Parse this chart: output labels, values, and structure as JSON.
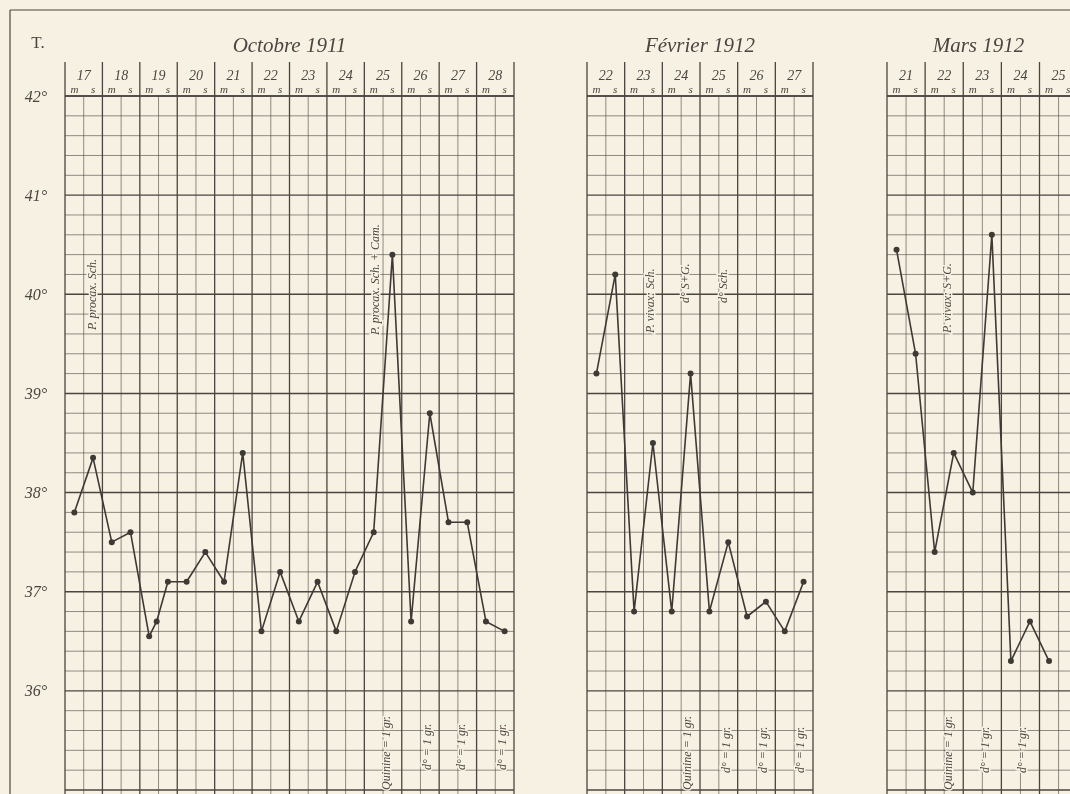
{
  "chart_data": [
    {
      "type": "line",
      "title": "Octobre 1911",
      "ylabel": "T.",
      "marker": "circle",
      "grid": true,
      "xlim": [
        17,
        29
      ],
      "ylim": [
        35,
        42
      ],
      "xticks": [
        {
          "value": 17,
          "label": null
        },
        {
          "value": 17.5,
          "label": "17"
        },
        {
          "value": 18,
          "label": null
        },
        {
          "value": 18.5,
          "label": "18"
        },
        {
          "value": 19,
          "label": null
        },
        {
          "value": 19.5,
          "label": "19"
        },
        {
          "value": 20,
          "label": null
        },
        {
          "value": 20.5,
          "label": "20"
        },
        {
          "value": 21,
          "label": null
        },
        {
          "value": 21.5,
          "label": "21"
        },
        {
          "value": 22,
          "label": null
        },
        {
          "value": 22.5,
          "label": "22"
        },
        {
          "value": 23,
          "label": null
        },
        {
          "value": 23.5,
          "label": "23"
        },
        {
          "value": 24,
          "label": null
        },
        {
          "value": 24.5,
          "label": "24"
        },
        {
          "value": 25,
          "label": null
        },
        {
          "value": 25.5,
          "label": "25"
        },
        {
          "value": 26,
          "label": null
        },
        {
          "value": 26.5,
          "label": "26"
        },
        {
          "value": 27,
          "label": null
        },
        {
          "value": 27.5,
          "label": "27"
        },
        {
          "value": 28,
          "label": null
        },
        {
          "value": 28.5,
          "label": "28"
        },
        {
          "value": 29,
          "label": null
        }
      ],
      "yticks": [
        {
          "value": 35,
          "label": null
        },
        {
          "value": 35.2,
          "label": null
        },
        {
          "value": 35.4,
          "label": null
        },
        {
          "value": 35.6,
          "label": null
        },
        {
          "value": 35.8,
          "label": null
        },
        {
          "value": 36,
          "label": "36°"
        },
        {
          "value": 36.2,
          "label": null
        },
        {
          "value": 36.4,
          "label": null
        },
        {
          "value": 36.6,
          "label": null
        },
        {
          "value": 36.8,
          "label": null
        },
        {
          "value": 37,
          "label": "37°"
        },
        {
          "value": 37.2,
          "label": null
        },
        {
          "value": 37.4,
          "label": null
        },
        {
          "value": 37.6,
          "label": null
        },
        {
          "value": 37.8,
          "label": null
        },
        {
          "value": 38,
          "label": "38°"
        },
        {
          "value": 38.2,
          "label": null
        },
        {
          "value": 38.4,
          "label": null
        },
        {
          "value": 38.6,
          "label": null
        },
        {
          "value": 38.8,
          "label": null
        },
        {
          "value": 39,
          "label": "39°"
        },
        {
          "value": 39.2,
          "label": null
        },
        {
          "value": 39.4,
          "label": null
        },
        {
          "value": 39.6,
          "label": null
        },
        {
          "value": 39.8,
          "label": null
        },
        {
          "value": 40,
          "label": "40°"
        },
        {
          "value": 40.2,
          "label": null
        },
        {
          "value": 40.4,
          "label": null
        },
        {
          "value": 40.6,
          "label": null
        },
        {
          "value": 40.8,
          "label": null
        },
        {
          "value": 41,
          "label": "41°"
        },
        {
          "value": 41.2,
          "label": null
        },
        {
          "value": 41.4,
          "label": null
        },
        {
          "value": 41.6,
          "label": null
        },
        {
          "value": 41.8,
          "label": null
        },
        {
          "value": 42,
          "label": "42°"
        }
      ],
      "x": [
        17.25,
        17.75,
        18.25,
        18.75,
        19.25,
        19.45,
        19.75,
        20.25,
        20.75,
        21.25,
        21.75,
        22.25,
        22.75,
        23.25,
        23.75,
        24.25,
        24.75,
        25.25,
        25.75,
        26.25,
        26.75,
        27.25,
        27.75,
        28.25,
        28.75
      ],
      "series": [
        {
          "color": "#3d3a35",
          "values": [
            37.8,
            38.35,
            37.5,
            37.6,
            36.55,
            36.7,
            37.1,
            37.1,
            37.4,
            37.1,
            38.4,
            36.6,
            37.2,
            36.7,
            37.1,
            36.6,
            37.2,
            37.6,
            40.4,
            36.7,
            38.8,
            37.7,
            37.7,
            36.7,
            36.6
          ]
        }
      ],
      "annotations": [
        "P. procax. Sch.",
        "P. procax. Sch. + Cam.",
        "Quinine = 1 gr.",
        "d° = 1 gr.",
        "d° = 1 gr.",
        "d° = 1 gr.",
        "m",
        "s",
        "m",
        "s",
        "m",
        "s",
        "m",
        "s",
        "m",
        "s",
        "m",
        "s",
        "m",
        "s",
        "m",
        "s",
        "m",
        "s",
        "m",
        "s",
        "m",
        "s",
        "m",
        "s"
      ]
    },
    {
      "type": "line",
      "title": "Février 1912",
      "marker": "circle",
      "grid": true,
      "tick_labels": "x",
      "xlim": [
        22,
        28
      ],
      "ylim": [
        35,
        42
      ],
      "xticks": [
        {
          "value": 22,
          "label": null
        },
        {
          "value": 22.5,
          "label": "22"
        },
        {
          "value": 23,
          "label": null
        },
        {
          "value": 23.5,
          "label": "23"
        },
        {
          "value": 24,
          "label": null
        },
        {
          "value": 24.5,
          "label": "24"
        },
        {
          "value": 25,
          "label": null
        },
        {
          "value": 25.5,
          "label": "25"
        },
        {
          "value": 26,
          "label": null
        },
        {
          "value": 26.5,
          "label": "26"
        },
        {
          "value": 27,
          "label": null
        },
        {
          "value": 27.5,
          "label": "27"
        },
        {
          "value": 28,
          "label": null
        }
      ],
      "yticks": [
        {
          "value": 35,
          "label": null
        },
        {
          "value": 35.2,
          "label": null
        },
        {
          "value": 35.4,
          "label": null
        },
        {
          "value": 35.6,
          "label": null
        },
        {
          "value": 35.8,
          "label": null
        },
        {
          "value": 36,
          "label": null
        },
        {
          "value": 36.2,
          "label": null
        },
        {
          "value": 36.4,
          "label": null
        },
        {
          "value": 36.6,
          "label": null
        },
        {
          "value": 36.8,
          "label": null
        },
        {
          "value": 37,
          "label": null
        },
        {
          "value": 37.2,
          "label": null
        },
        {
          "value": 37.4,
          "label": null
        },
        {
          "value": 37.6,
          "label": null
        },
        {
          "value": 37.8,
          "label": null
        },
        {
          "value": 38,
          "label": null
        },
        {
          "value": 38.2,
          "label": null
        },
        {
          "value": 38.4,
          "label": null
        },
        {
          "value": 38.6,
          "label": null
        },
        {
          "value": 38.8,
          "label": null
        },
        {
          "value": 39,
          "label": null
        },
        {
          "value": 39.2,
          "label": null
        },
        {
          "value": 39.4,
          "label": null
        },
        {
          "value": 39.6,
          "label": null
        },
        {
          "value": 39.8,
          "label": null
        },
        {
          "value": 40,
          "label": null
        },
        {
          "value": 40.2,
          "label": null
        },
        {
          "value": 40.4,
          "label": null
        },
        {
          "value": 40.6,
          "label": null
        },
        {
          "value": 40.8,
          "label": null
        },
        {
          "value": 41,
          "label": null
        },
        {
          "value": 41.2,
          "label": null
        },
        {
          "value": 41.4,
          "label": null
        },
        {
          "value": 41.6,
          "label": null
        },
        {
          "value": 41.8,
          "label": null
        },
        {
          "value": 42,
          "label": null
        }
      ],
      "x": [
        22.25,
        22.75,
        23.25,
        23.75,
        24.25,
        24.75,
        25.25,
        25.75,
        26.25,
        26.75,
        27.25,
        27.75
      ],
      "series": [
        {
          "color": "#3d3a35",
          "values": [
            39.2,
            40.2,
            36.8,
            38.5,
            36.8,
            39.2,
            36.8,
            37.5,
            36.75,
            36.9,
            36.6,
            37.1
          ]
        }
      ],
      "annotations": [
        "P. vivax: Sch.",
        "d° S+G.",
        "d° Sch.",
        "Quinine = 1 gr.",
        "d° = 1 gr.",
        "d° = 1 gr.",
        "d° = 1 gr.",
        "m",
        "s",
        "m",
        "s",
        "m",
        "s",
        "m",
        "s",
        "m",
        "s",
        "m",
        "s"
      ]
    },
    {
      "type": "line",
      "title": "Mars 1912",
      "marker": "circle",
      "grid": true,
      "tick_labels": "x",
      "xlim": [
        21,
        25.8
      ],
      "ylim": [
        35,
        42
      ],
      "xticks": [
        {
          "value": 21,
          "label": null
        },
        {
          "value": 21.5,
          "label": "21"
        },
        {
          "value": 22,
          "label": null
        },
        {
          "value": 22.5,
          "label": "22"
        },
        {
          "value": 23,
          "label": null
        },
        {
          "value": 23.5,
          "label": "23"
        },
        {
          "value": 24,
          "label": null
        },
        {
          "value": 24.5,
          "label": "24"
        },
        {
          "value": 25,
          "label": null
        },
        {
          "value": 25.5,
          "label": "25"
        }
      ],
      "yticks": [
        {
          "value": 35,
          "label": null
        },
        {
          "value": 35.2,
          "label": null
        },
        {
          "value": 35.4,
          "label": null
        },
        {
          "value": 35.6,
          "label": null
        },
        {
          "value": 35.8,
          "label": null
        },
        {
          "value": 36,
          "label": null
        },
        {
          "value": 36.2,
          "label": null
        },
        {
          "value": 36.4,
          "label": null
        },
        {
          "value": 36.6,
          "label": null
        },
        {
          "value": 36.8,
          "label": null
        },
        {
          "value": 37,
          "label": null
        },
        {
          "value": 37.2,
          "label": null
        },
        {
          "value": 37.4,
          "label": null
        },
        {
          "value": 37.6,
          "label": null
        },
        {
          "value": 37.8,
          "label": null
        },
        {
          "value": 38,
          "label": null
        },
        {
          "value": 38.2,
          "label": null
        },
        {
          "value": 38.4,
          "label": null
        },
        {
          "value": 38.6,
          "label": null
        },
        {
          "value": 38.8,
          "label": null
        },
        {
          "value": 39,
          "label": null
        },
        {
          "value": 39.2,
          "label": null
        },
        {
          "value": 39.4,
          "label": null
        },
        {
          "value": 39.6,
          "label": null
        },
        {
          "value": 39.8,
          "label": null
        },
        {
          "value": 40,
          "label": null
        },
        {
          "value": 40.2,
          "label": null
        },
        {
          "value": 40.4,
          "label": null
        },
        {
          "value": 40.6,
          "label": null
        },
        {
          "value": 40.8,
          "label": null
        },
        {
          "value": 41,
          "label": null
        },
        {
          "value": 41.2,
          "label": null
        },
        {
          "value": 41.4,
          "label": null
        },
        {
          "value": 41.6,
          "label": null
        },
        {
          "value": 41.8,
          "label": null
        },
        {
          "value": 42,
          "label": null
        }
      ],
      "x": [
        21.25,
        21.75,
        22.25,
        22.75,
        23.25,
        23.75,
        24.25,
        24.75,
        25.25
      ],
      "series": [
        {
          "color": "#3d3a35",
          "values": [
            40.45,
            39.4,
            37.4,
            38.4,
            38.0,
            40.6,
            36.3,
            36.7,
            36.3
          ]
        }
      ],
      "annotations": [
        "P. vivax: S+G.",
        "Quinine = 1 gr.",
        "d° = 1 gr.",
        "d° = 1 gr.",
        "m",
        "s",
        "m",
        "s",
        "m",
        "s",
        "m",
        "s",
        "m",
        "s"
      ]
    }
  ]
}
